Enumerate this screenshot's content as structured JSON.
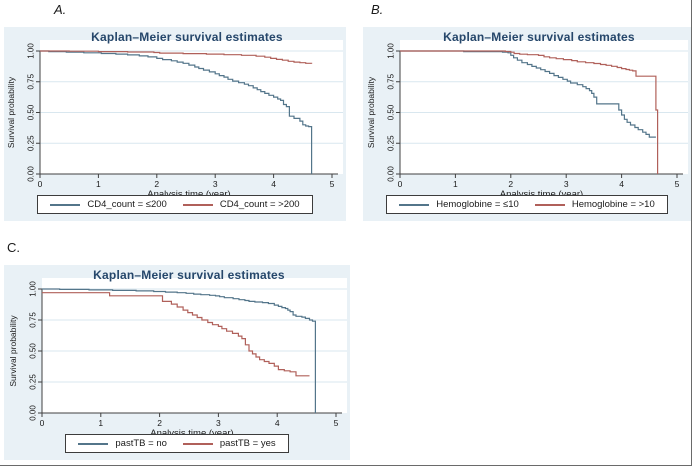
{
  "figure": {
    "panel_labels": [
      "A.",
      "B.",
      "C."
    ],
    "colors": {
      "page_background": "#ffffff",
      "panel_background": "#e9f1f6",
      "plot_background": "#ffffff",
      "grid": "#d9e7ef",
      "axis": "#404040",
      "tick_text": "#1a1a1a",
      "title_text": "#26476b",
      "series_blue": "#53758a",
      "series_red": "#b0605a"
    }
  },
  "chart_data": [
    {
      "id": "A",
      "type": "line",
      "subtype": "kaplan-meier-step",
      "title": "Kaplan–Meier survival estimates",
      "xlabel": "Analysis time (year)",
      "ylabel": "Survival probability",
      "xlim": [
        0,
        5
      ],
      "ylim": [
        0,
        1
      ],
      "xticks": [
        "0",
        "1",
        "2",
        "3",
        "4",
        "5"
      ],
      "yticks": [
        "0.00",
        "0.25",
        "0.50",
        "0.75",
        "1.00"
      ],
      "grid": "horizontal",
      "legend_position": "bottom",
      "series": [
        {
          "name": "CD4_count = ≤200",
          "color": "#53758a",
          "points": [
            [
              0,
              1
            ],
            [
              0.15,
              0.995
            ],
            [
              0.45,
              0.99
            ],
            [
              0.75,
              0.985
            ],
            [
              1.05,
              0.98
            ],
            [
              1.3,
              0.975
            ],
            [
              1.5,
              0.968
            ],
            [
              1.7,
              0.96
            ],
            [
              1.85,
              0.952
            ],
            [
              2,
              0.94
            ],
            [
              2.1,
              0.93
            ],
            [
              2.25,
              0.92
            ],
            [
              2.35,
              0.91
            ],
            [
              2.45,
              0.9
            ],
            [
              2.55,
              0.885
            ],
            [
              2.65,
              0.87
            ],
            [
              2.72,
              0.858
            ],
            [
              2.8,
              0.845
            ],
            [
              2.9,
              0.83
            ],
            [
              3,
              0.815
            ],
            [
              3.07,
              0.8
            ],
            [
              3.15,
              0.788
            ],
            [
              3.22,
              0.77
            ],
            [
              3.3,
              0.755
            ],
            [
              3.4,
              0.742
            ],
            [
              3.5,
              0.73
            ],
            [
              3.57,
              0.718
            ],
            [
              3.65,
              0.7
            ],
            [
              3.72,
              0.685
            ],
            [
              3.78,
              0.67
            ],
            [
              3.85,
              0.655
            ],
            [
              3.92,
              0.64
            ],
            [
              4,
              0.625
            ],
            [
              4.07,
              0.61
            ],
            [
              4.12,
              0.598
            ],
            [
              4.17,
              0.565
            ],
            [
              4.22,
              0.548
            ],
            [
              4.27,
              0.47
            ],
            [
              4.35,
              0.452
            ],
            [
              4.45,
              0.43
            ],
            [
              4.5,
              0.4
            ],
            [
              4.55,
              0.39
            ],
            [
              4.6,
              0.385
            ],
            [
              4.65,
              0
            ]
          ]
        },
        {
          "name": "CD4_count = >200",
          "color": "#b0605a",
          "points": [
            [
              0,
              1
            ],
            [
              0.5,
              0.998
            ],
            [
              1,
              0.995
            ],
            [
              1.5,
              0.992
            ],
            [
              1.95,
              0.988
            ],
            [
              2.05,
              0.983
            ],
            [
              2.45,
              0.979
            ],
            [
              2.85,
              0.975
            ],
            [
              3.15,
              0.97
            ],
            [
              3.45,
              0.965
            ],
            [
              3.7,
              0.958
            ],
            [
              3.85,
              0.95
            ],
            [
              3.95,
              0.94
            ],
            [
              4.05,
              0.932
            ],
            [
              4.15,
              0.925
            ],
            [
              4.25,
              0.916
            ],
            [
              4.35,
              0.91
            ],
            [
              4.45,
              0.905
            ],
            [
              4.55,
              0.9
            ],
            [
              4.65,
              0.897
            ]
          ]
        }
      ]
    },
    {
      "id": "B",
      "type": "line",
      "subtype": "kaplan-meier-step",
      "title": "Kaplan–Meier survival estimates",
      "xlabel": "Analysis time (year)",
      "ylabel": "Survival probability",
      "xlim": [
        0,
        5
      ],
      "ylim": [
        0,
        1
      ],
      "xticks": [
        "0",
        "1",
        "2",
        "3",
        "4",
        "5"
      ],
      "yticks": [
        "0.00",
        "0.25",
        "0.50",
        "0.75",
        "1.00"
      ],
      "grid": "horizontal",
      "legend_position": "bottom",
      "series": [
        {
          "name": "Hemoglobine = ≤10",
          "color": "#53758a",
          "points": [
            [
              0,
              1
            ],
            [
              1.15,
              0.995
            ],
            [
              1.85,
              0.99
            ],
            [
              1.95,
              0.985
            ],
            [
              2,
              0.965
            ],
            [
              2.05,
              0.945
            ],
            [
              2.12,
              0.925
            ],
            [
              2.2,
              0.905
            ],
            [
              2.3,
              0.89
            ],
            [
              2.38,
              0.875
            ],
            [
              2.46,
              0.862
            ],
            [
              2.54,
              0.848
            ],
            [
              2.62,
              0.833
            ],
            [
              2.7,
              0.818
            ],
            [
              2.78,
              0.8
            ],
            [
              2.86,
              0.785
            ],
            [
              2.94,
              0.77
            ],
            [
              3.02,
              0.755
            ],
            [
              3.08,
              0.74
            ],
            [
              3.2,
              0.726
            ],
            [
              3.3,
              0.71
            ],
            [
              3.36,
              0.694
            ],
            [
              3.42,
              0.678
            ],
            [
              3.46,
              0.655
            ],
            [
              3.5,
              0.625
            ],
            [
              3.55,
              0.57
            ],
            [
              3.95,
              0.52
            ],
            [
              4,
              0.48
            ],
            [
              4.05,
              0.445
            ],
            [
              4.1,
              0.42
            ],
            [
              4.16,
              0.398
            ],
            [
              4.24,
              0.378
            ],
            [
              4.3,
              0.36
            ],
            [
              4.38,
              0.34
            ],
            [
              4.44,
              0.322
            ],
            [
              4.5,
              0.3
            ],
            [
              4.62,
              0.3
            ]
          ]
        },
        {
          "name": "Hemoglobine = >10",
          "color": "#b0605a",
          "points": [
            [
              0,
              1
            ],
            [
              1.9,
              0.996
            ],
            [
              2,
              0.99
            ],
            [
              2.06,
              0.98
            ],
            [
              2.16,
              0.974
            ],
            [
              2.3,
              0.97
            ],
            [
              2.5,
              0.964
            ],
            [
              2.6,
              0.953
            ],
            [
              2.7,
              0.945
            ],
            [
              2.82,
              0.937
            ],
            [
              2.95,
              0.93
            ],
            [
              3.1,
              0.922
            ],
            [
              3.2,
              0.912
            ],
            [
              3.35,
              0.905
            ],
            [
              3.5,
              0.898
            ],
            [
              3.62,
              0.89
            ],
            [
              3.72,
              0.884
            ],
            [
              3.82,
              0.876
            ],
            [
              3.92,
              0.866
            ],
            [
              4,
              0.857
            ],
            [
              4.08,
              0.85
            ],
            [
              4.14,
              0.844
            ],
            [
              4.2,
              0.838
            ],
            [
              4.26,
              0.795
            ],
            [
              4.6,
              0.795
            ],
            [
              4.62,
              0.52
            ],
            [
              4.65,
              0
            ]
          ]
        }
      ]
    },
    {
      "id": "C",
      "type": "line",
      "subtype": "kaplan-meier-step",
      "title": "Kaplan–Meier survival estimates",
      "xlabel": "Analysis time (year)",
      "ylabel": "Survival probability",
      "xlim": [
        0,
        5
      ],
      "ylim": [
        0,
        1
      ],
      "xticks": [
        "0",
        "1",
        "2",
        "3",
        "4",
        "5"
      ],
      "yticks": [
        "0.00",
        "0.25",
        "0.50",
        "0.75",
        "1.00"
      ],
      "grid": "horizontal",
      "legend_position": "bottom",
      "series": [
        {
          "name": "pastTB = no",
          "color": "#53758a",
          "points": [
            [
              0,
              1
            ],
            [
              0.3,
              0.997
            ],
            [
              0.8,
              0.993
            ],
            [
              1.2,
              0.989
            ],
            [
              1.6,
              0.985
            ],
            [
              1.9,
              0.98
            ],
            [
              2.1,
              0.975
            ],
            [
              2.3,
              0.97
            ],
            [
              2.45,
              0.965
            ],
            [
              2.58,
              0.959
            ],
            [
              2.7,
              0.954
            ],
            [
              2.85,
              0.949
            ],
            [
              2.95,
              0.944
            ],
            [
              3.02,
              0.938
            ],
            [
              3.1,
              0.93
            ],
            [
              3.25,
              0.922
            ],
            [
              3.35,
              0.914
            ],
            [
              3.45,
              0.907
            ],
            [
              3.52,
              0.9
            ],
            [
              3.62,
              0.895
            ],
            [
              3.75,
              0.89
            ],
            [
              3.85,
              0.883
            ],
            [
              3.95,
              0.87
            ],
            [
              4.02,
              0.86
            ],
            [
              4.08,
              0.85
            ],
            [
              4.14,
              0.843
            ],
            [
              4.18,
              0.83
            ],
            [
              4.22,
              0.818
            ],
            [
              4.27,
              0.79
            ],
            [
              4.32,
              0.78
            ],
            [
              4.42,
              0.773
            ],
            [
              4.48,
              0.763
            ],
            [
              4.55,
              0.75
            ],
            [
              4.6,
              0.74
            ],
            [
              4.65,
              0
            ]
          ]
        },
        {
          "name": "pastTB = yes",
          "color": "#b0605a",
          "points": [
            [
              0,
              0.97
            ],
            [
              1.15,
              0.945
            ],
            [
              2.05,
              0.9
            ],
            [
              2.2,
              0.878
            ],
            [
              2.3,
              0.855
            ],
            [
              2.4,
              0.83
            ],
            [
              2.48,
              0.81
            ],
            [
              2.56,
              0.79
            ],
            [
              2.64,
              0.77
            ],
            [
              2.72,
              0.75
            ],
            [
              2.82,
              0.73
            ],
            [
              2.9,
              0.712
            ],
            [
              3,
              0.698
            ],
            [
              3.06,
              0.68
            ],
            [
              3.14,
              0.66
            ],
            [
              3.24,
              0.642
            ],
            [
              3.34,
              0.62
            ],
            [
              3.4,
              0.6
            ],
            [
              3.46,
              0.55
            ],
            [
              3.52,
              0.5
            ],
            [
              3.58,
              0.477
            ],
            [
              3.64,
              0.452
            ],
            [
              3.7,
              0.43
            ],
            [
              3.78,
              0.415
            ],
            [
              3.86,
              0.4
            ],
            [
              3.95,
              0.378
            ],
            [
              4.02,
              0.35
            ],
            [
              4.12,
              0.34
            ],
            [
              4.22,
              0.332
            ],
            [
              4.32,
              0.3
            ],
            [
              4.55,
              0.3
            ]
          ]
        }
      ]
    }
  ]
}
